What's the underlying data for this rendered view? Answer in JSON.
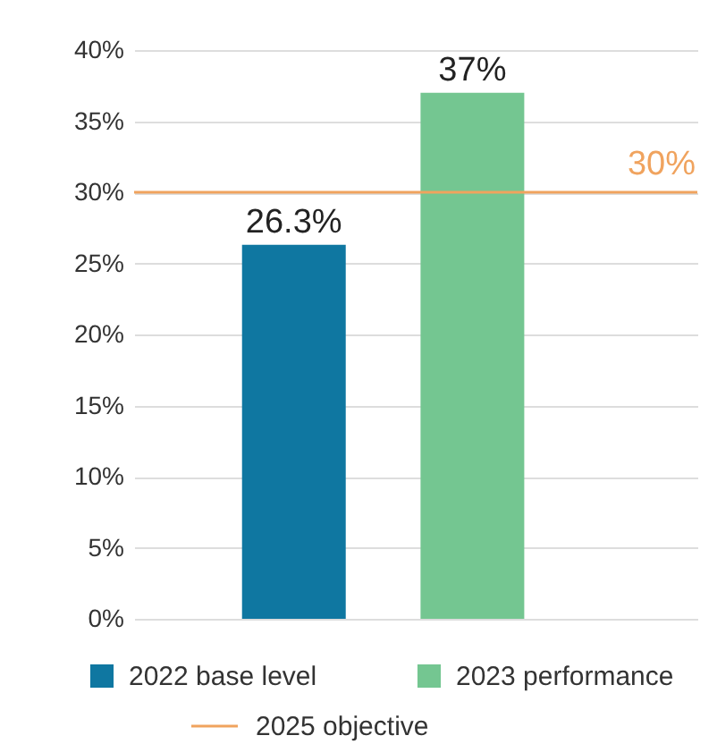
{
  "chart_data": {
    "type": "bar",
    "categories": [
      null,
      null
    ],
    "series": [
      {
        "name": "2022 base level",
        "color": "#0f77a1",
        "values": [
          26.3,
          null
        ],
        "value_labels": [
          "26.3%",
          null
        ]
      },
      {
        "name": "2023 performance",
        "color": "#74c691",
        "values": [
          null,
          37
        ],
        "value_labels": [
          null,
          "37%"
        ]
      }
    ],
    "ylim": [
      0,
      40
    ],
    "yticks": [
      {
        "value": 0,
        "label": "0%"
      },
      {
        "value": 5,
        "label": "5%"
      },
      {
        "value": 10,
        "label": "10%"
      },
      {
        "value": 15,
        "label": "15%"
      },
      {
        "value": 20,
        "label": "20%"
      },
      {
        "value": 25,
        "label": "25%"
      },
      {
        "value": 30,
        "label": "30%"
      },
      {
        "value": 35,
        "label": "35%"
      },
      {
        "value": 40,
        "label": "40%"
      }
    ],
    "ref_lines": [
      {
        "axis": "y",
        "value": 30,
        "label": "2025 objective",
        "color": "#f0a35e"
      }
    ],
    "annotations": [
      {
        "text": "30%",
        "y": 30
      }
    ],
    "grid": "y",
    "legend": "bottom"
  }
}
